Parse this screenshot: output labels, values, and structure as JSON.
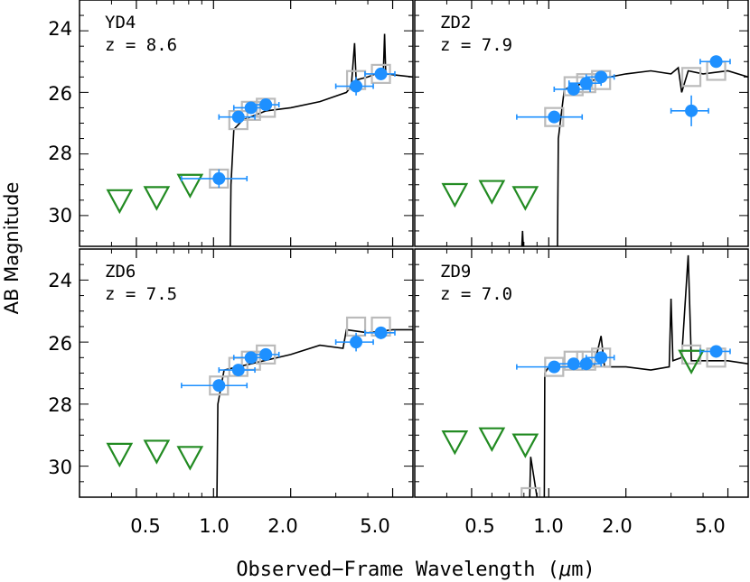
{
  "figure": {
    "ylabel": "AB Magnitude",
    "xlabel_pre": "Observed−Frame Wavelength (",
    "xlabel_mu": "μ",
    "xlabel_post": "m)",
    "y_tick_labels": [
      "24",
      "26",
      "28",
      "30"
    ],
    "x_tick_labels": [
      "0.5",
      "1.0",
      "2.0",
      "5.0"
    ]
  },
  "colors": {
    "detection": "#1e90ff",
    "upper_limit": "#228b22",
    "model": "#000000",
    "model_phot": "#bbbbbb"
  },
  "chart_data": [
    {
      "type": "scatter",
      "name": "YD4",
      "redshift_label": "z = 8.6",
      "xscale": "log",
      "xlim": [
        0.3,
        6.0
      ],
      "ylim": [
        31.0,
        23.0
      ],
      "x_ticks": [
        0.5,
        1.0,
        2.0,
        5.0
      ],
      "y_ticks": [
        24,
        26,
        28,
        30
      ],
      "detections": [
        {
          "x": 1.05,
          "y": 28.8,
          "xerr": [
            0.3,
            0.3
          ],
          "yerr": 0.3
        },
        {
          "x": 1.25,
          "y": 26.8,
          "xerr": [
            0.2,
            0.2
          ],
          "yerr": 0.1
        },
        {
          "x": 1.4,
          "y": 26.5,
          "xerr": [
            0.2,
            0.2
          ],
          "yerr": 0.1
        },
        {
          "x": 1.6,
          "y": 26.4,
          "xerr": [
            0.2,
            0.2
          ],
          "yerr": 0.1
        },
        {
          "x": 3.6,
          "y": 25.8,
          "xerr": [
            0.6,
            0.6
          ],
          "yerr": 0.3
        },
        {
          "x": 4.5,
          "y": 25.4,
          "xerr": [
            0.6,
            0.6
          ],
          "yerr": 0.2
        }
      ],
      "upper_limits": [
        {
          "x": 0.43,
          "y": 29.5
        },
        {
          "x": 0.6,
          "y": 29.4
        },
        {
          "x": 0.81,
          "y": 29.0
        }
      ],
      "model_phot": [
        {
          "x": 1.05,
          "y": 28.8
        },
        {
          "x": 1.25,
          "y": 26.9
        },
        {
          "x": 1.4,
          "y": 26.6
        },
        {
          "x": 1.6,
          "y": 26.5
        },
        {
          "x": 3.6,
          "y": 25.6
        },
        {
          "x": 4.5,
          "y": 25.4
        }
      ],
      "model_sed": [
        [
          0.3,
          31.5
        ],
        [
          1.16,
          31.5
        ],
        [
          1.17,
          29.0
        ],
        [
          1.2,
          27.2
        ],
        [
          1.3,
          26.9
        ],
        [
          1.6,
          26.6
        ],
        [
          2.0,
          26.5
        ],
        [
          2.6,
          26.3
        ],
        [
          3.3,
          26.0
        ],
        [
          3.45,
          25.8
        ],
        [
          3.55,
          24.4
        ],
        [
          3.6,
          25.6
        ],
        [
          4.0,
          25.5
        ],
        [
          4.6,
          25.3
        ],
        [
          4.65,
          24.1
        ],
        [
          4.7,
          25.4
        ],
        [
          6.0,
          25.5
        ]
      ]
    },
    {
      "type": "scatter",
      "name": "ZD2",
      "redshift_label": "z = 7.9",
      "xscale": "log",
      "xlim": [
        0.3,
        6.0
      ],
      "ylim": [
        31.0,
        23.0
      ],
      "x_ticks": [
        0.5,
        1.0,
        2.0,
        5.0
      ],
      "y_ticks": [
        24,
        26,
        28,
        30
      ],
      "detections": [
        {
          "x": 1.05,
          "y": 26.8,
          "xerr": [
            0.3,
            0.3
          ],
          "yerr": 0.2
        },
        {
          "x": 1.25,
          "y": 25.9,
          "xerr": [
            0.2,
            0.2
          ],
          "yerr": 0.1
        },
        {
          "x": 1.4,
          "y": 25.7,
          "xerr": [
            0.2,
            0.2
          ],
          "yerr": 0.1
        },
        {
          "x": 1.6,
          "y": 25.5,
          "xerr": [
            0.2,
            0.2
          ],
          "yerr": 0.1
        },
        {
          "x": 3.6,
          "y": 26.6,
          "xerr": [
            0.6,
            0.6
          ],
          "yerr": 0.5
        },
        {
          "x": 4.5,
          "y": 25.0,
          "xerr": [
            0.6,
            0.6
          ],
          "yerr": 0.2
        }
      ],
      "upper_limits": [
        {
          "x": 0.43,
          "y": 29.3
        },
        {
          "x": 0.6,
          "y": 29.2
        },
        {
          "x": 0.81,
          "y": 29.4
        }
      ],
      "model_phot": [
        {
          "x": 1.05,
          "y": 26.8
        },
        {
          "x": 1.25,
          "y": 25.8
        },
        {
          "x": 1.4,
          "y": 25.7
        },
        {
          "x": 1.6,
          "y": 25.6
        },
        {
          "x": 3.6,
          "y": 25.5
        },
        {
          "x": 4.5,
          "y": 25.3
        }
      ],
      "model_sed": [
        [
          0.3,
          31.5
        ],
        [
          0.78,
          31.5
        ],
        [
          0.79,
          30.5
        ],
        [
          0.8,
          31.5
        ],
        [
          1.08,
          31.5
        ],
        [
          1.09,
          27.5
        ],
        [
          1.15,
          25.9
        ],
        [
          1.5,
          25.6
        ],
        [
          2.0,
          25.4
        ],
        [
          2.5,
          25.3
        ],
        [
          3.0,
          25.4
        ],
        [
          3.2,
          25.2
        ],
        [
          3.3,
          26.0
        ],
        [
          3.5,
          25.3
        ],
        [
          4.0,
          25.4
        ],
        [
          5.0,
          25.3
        ],
        [
          6.0,
          25.5
        ]
      ]
    },
    {
      "type": "scatter",
      "name": "ZD6",
      "redshift_label": "z = 7.5",
      "xscale": "log",
      "xlim": [
        0.3,
        6.0
      ],
      "ylim": [
        31.0,
        23.0
      ],
      "x_ticks": [
        0.5,
        1.0,
        2.0,
        5.0
      ],
      "y_ticks": [
        24,
        26,
        28,
        30
      ],
      "detections": [
        {
          "x": 1.05,
          "y": 27.4,
          "xerr": [
            0.3,
            0.3
          ],
          "yerr": 0.2
        },
        {
          "x": 1.25,
          "y": 26.9,
          "xerr": [
            0.2,
            0.2
          ],
          "yerr": 0.1
        },
        {
          "x": 1.4,
          "y": 26.5,
          "xerr": [
            0.2,
            0.2
          ],
          "yerr": 0.1
        },
        {
          "x": 1.6,
          "y": 26.4,
          "xerr": [
            0.2,
            0.2
          ],
          "yerr": 0.1
        },
        {
          "x": 3.6,
          "y": 26.0,
          "xerr": [
            0.6,
            0.6
          ],
          "yerr": 0.3
        },
        {
          "x": 4.5,
          "y": 25.7,
          "xerr": [
            0.6,
            0.6
          ],
          "yerr": 0.2
        }
      ],
      "upper_limits": [
        {
          "x": 0.43,
          "y": 29.6
        },
        {
          "x": 0.6,
          "y": 29.5
        },
        {
          "x": 0.81,
          "y": 29.7
        }
      ],
      "model_phot": [
        {
          "x": 1.05,
          "y": 27.4
        },
        {
          "x": 1.25,
          "y": 26.8
        },
        {
          "x": 1.4,
          "y": 26.6
        },
        {
          "x": 1.6,
          "y": 26.4
        },
        {
          "x": 3.6,
          "y": 25.5
        },
        {
          "x": 4.5,
          "y": 25.5
        }
      ],
      "model_sed": [
        [
          0.3,
          31.5
        ],
        [
          1.03,
          31.5
        ],
        [
          1.04,
          28.0
        ],
        [
          1.1,
          26.9
        ],
        [
          1.4,
          26.7
        ],
        [
          2.0,
          26.4
        ],
        [
          2.6,
          26.1
        ],
        [
          3.2,
          26.2
        ],
        [
          3.3,
          25.6
        ],
        [
          4.0,
          25.7
        ],
        [
          5.0,
          25.6
        ],
        [
          6.0,
          25.6
        ]
      ]
    },
    {
      "type": "scatter",
      "name": "ZD9",
      "redshift_label": "z = 7.0",
      "xscale": "log",
      "xlim": [
        0.3,
        6.0
      ],
      "ylim": [
        31.0,
        23.0
      ],
      "x_ticks": [
        0.5,
        1.0,
        2.0,
        5.0
      ],
      "y_ticks": [
        24,
        26,
        28,
        30
      ],
      "detections": [
        {
          "x": 1.05,
          "y": 26.8,
          "xerr": [
            0.3,
            0.3
          ],
          "yerr": 0.1
        },
        {
          "x": 1.25,
          "y": 26.7,
          "xerr": [
            0.2,
            0.2
          ],
          "yerr": 0.1
        },
        {
          "x": 1.4,
          "y": 26.7,
          "xerr": [
            0.2,
            0.2
          ],
          "yerr": 0.1
        },
        {
          "x": 1.6,
          "y": 26.5,
          "xerr": [
            0.2,
            0.2
          ],
          "yerr": 0.1
        },
        {
          "x": 4.5,
          "y": 26.3,
          "xerr": [
            0.6,
            0.6
          ],
          "yerr": 0.2
        }
      ],
      "upper_limits": [
        {
          "x": 0.43,
          "y": 29.2
        },
        {
          "x": 0.6,
          "y": 29.1
        },
        {
          "x": 0.81,
          "y": 29.3
        },
        {
          "x": 3.6,
          "y": 26.6
        }
      ],
      "model_phot": [
        {
          "x": 0.85,
          "y": 31.0
        },
        {
          "x": 1.05,
          "y": 26.8
        },
        {
          "x": 1.25,
          "y": 26.6
        },
        {
          "x": 1.4,
          "y": 26.6
        },
        {
          "x": 1.6,
          "y": 26.5
        },
        {
          "x": 3.6,
          "y": 26.4
        },
        {
          "x": 4.5,
          "y": 26.5
        }
      ],
      "model_sed": [
        [
          0.3,
          31.5
        ],
        [
          0.84,
          31.5
        ],
        [
          0.85,
          29.7
        ],
        [
          0.92,
          31.5
        ],
        [
          0.96,
          31.5
        ],
        [
          0.965,
          27.0
        ],
        [
          1.0,
          26.8
        ],
        [
          1.5,
          26.8
        ],
        [
          1.6,
          25.8
        ],
        [
          1.65,
          26.8
        ],
        [
          2.0,
          26.8
        ],
        [
          2.5,
          26.9
        ],
        [
          2.95,
          26.8
        ],
        [
          3.0,
          24.6
        ],
        [
          3.05,
          26.6
        ],
        [
          3.3,
          26.5
        ],
        [
          3.5,
          23.2
        ],
        [
          3.6,
          26.6
        ],
        [
          4.0,
          26.6
        ],
        [
          5.0,
          26.6
        ],
        [
          6.0,
          26.7
        ]
      ]
    }
  ]
}
